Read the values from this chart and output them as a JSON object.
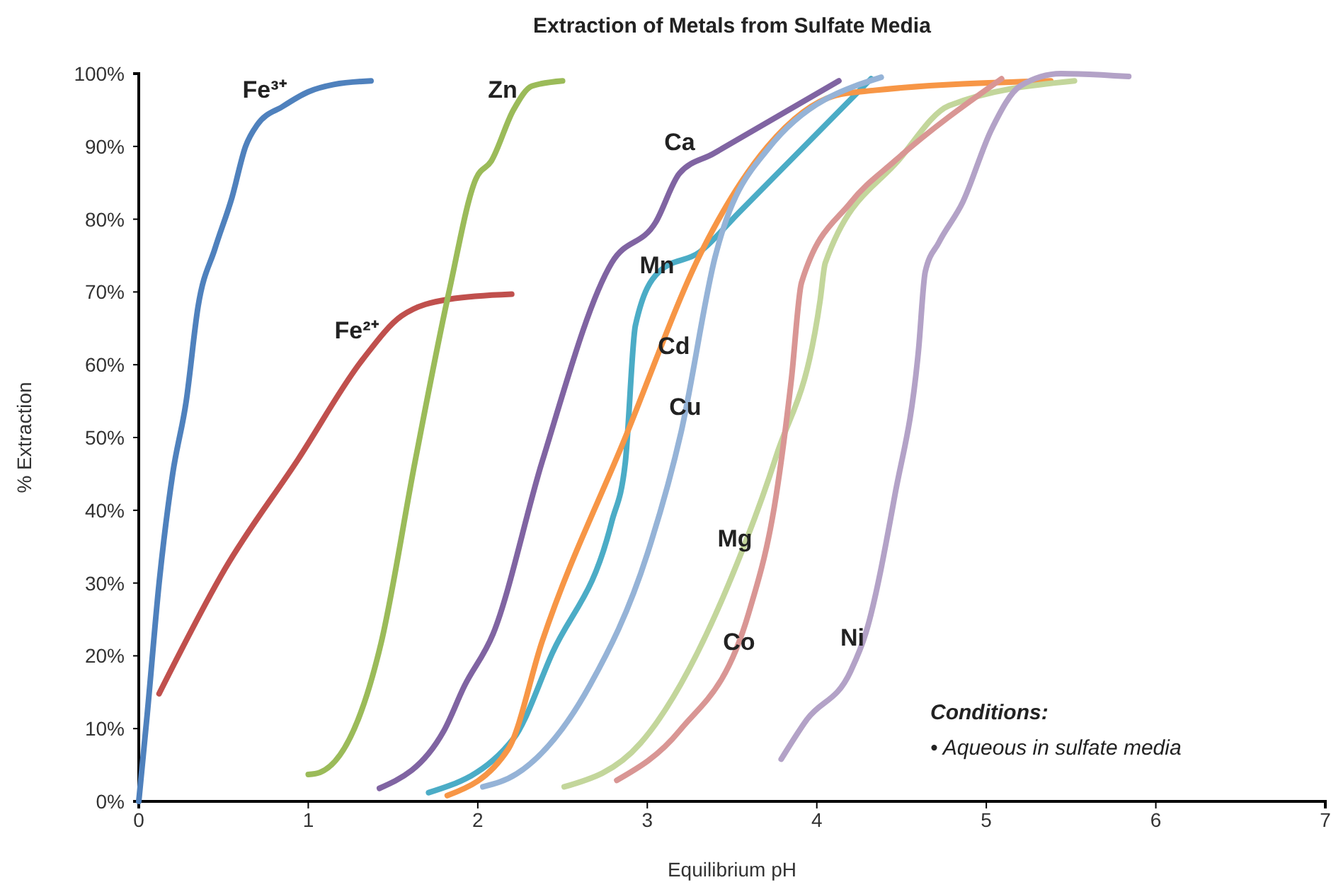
{
  "chart_data": {
    "type": "line",
    "title": "Extraction of Metals from Sulfate Media",
    "xlabel": "Equilibrium pH",
    "ylabel": "% Extraction",
    "xlim": [
      0,
      7
    ],
    "xticks": [
      0,
      1,
      2,
      3,
      4,
      5,
      6,
      7
    ],
    "ylim": [
      0,
      100
    ],
    "yticks": [
      {
        "value": 0,
        "label": "0%"
      },
      {
        "value": 10,
        "label": "10%"
      },
      {
        "value": 20,
        "label": "20%"
      },
      {
        "value": 30,
        "label": "30%"
      },
      {
        "value": 40,
        "label": "40%"
      },
      {
        "value": 50,
        "label": "50%"
      },
      {
        "value": 60,
        "label": "60%"
      },
      {
        "value": 70,
        "label": "70%"
      },
      {
        "value": 80,
        "label": "80%"
      },
      {
        "value": 90,
        "label": "90%"
      },
      {
        "value": 100,
        "label": "100%"
      }
    ],
    "grid": false,
    "marker": "none",
    "line_style": "solid",
    "series": [
      {
        "name": "Fe³⁺",
        "color": "#4f81bd",
        "x": [
          0,
          0.05,
          0.12,
          0.2,
          0.28,
          0.35,
          0.45,
          0.55,
          0.63,
          0.7,
          0.85,
          1.0,
          1.15,
          1.37
        ],
        "values": [
          0,
          12,
          30,
          45,
          55,
          68,
          76,
          83,
          90,
          93,
          95.5,
          97.5,
          98.5,
          99
        ]
      },
      {
        "name": "Fe²⁺",
        "color": "#c0504d",
        "x": [
          0.12,
          0.51,
          0.94,
          1.32,
          1.55,
          1.83,
          2.2
        ],
        "values": [
          14.8,
          32,
          47,
          60.7,
          66.7,
          69,
          69.7
        ]
      },
      {
        "name": "Zn",
        "color": "#9bbb59",
        "x": [
          1.0,
          1.07,
          1.43,
          1.63,
          1.83,
          1.99,
          2.08,
          2.21,
          2.32,
          2.5
        ],
        "values": [
          3.7,
          4,
          21.8,
          46.7,
          70,
          85.6,
          88,
          95,
          98.3,
          99
        ]
      },
      {
        "name": "Ca",
        "color": "#8064a2",
        "x": [
          1.42,
          1.8,
          1.92,
          2.09,
          2.38,
          2.79,
          3.05,
          3.19,
          3.39,
          4.13
        ],
        "values": [
          1.8,
          9.7,
          15.8,
          23,
          46.7,
          74,
          79.6,
          86.3,
          89,
          99
        ]
      },
      {
        "name": "Mn",
        "color": "#4bacc6",
        "x": [
          1.71,
          2.21,
          2.44,
          2.79,
          2.87,
          2.93,
          3.07,
          3.31,
          3.54,
          4.32
        ],
        "values": [
          1.2,
          8.6,
          20.4,
          38.4,
          46.5,
          65.4,
          72.8,
          75.5,
          80.9,
          99.3
        ]
      },
      {
        "name": "Cd",
        "color": "#f79646",
        "x": [
          1.82,
          2.18,
          2.38,
          2.87,
          3.33,
          3.71,
          4.11,
          4.34,
          5.38
        ],
        "values": [
          0.8,
          7.2,
          22,
          50,
          76,
          90,
          97,
          97.7,
          99
        ]
      },
      {
        "name": "Cu",
        "color": "#95b3d7",
        "x": [
          2.03,
          2.23,
          2.66,
          3.0,
          3.2,
          3.4,
          3.71,
          4.38
        ],
        "values": [
          2,
          3.8,
          15.9,
          34,
          50.8,
          74.8,
          89.6,
          99.5
        ]
      },
      {
        "name": "Mg",
        "color": "#c3d69b",
        "x": [
          2.51,
          2.96,
          3.53,
          3.76,
          4.02,
          4.05,
          4.49,
          4.78,
          5.52
        ],
        "values": [
          2,
          8,
          32.7,
          47.4,
          68.9,
          74,
          88.3,
          95.6,
          99
        ]
      },
      {
        "name": "Co",
        "color": "#d99694",
        "x": [
          2.82,
          3.19,
          3.6,
          3.76,
          3.85,
          3.91,
          4.2,
          4.46,
          5.09
        ],
        "values": [
          2.9,
          9.7,
          26,
          42,
          58,
          71.3,
          82.3,
          88,
          99.3
        ]
      },
      {
        "name": "Ni",
        "color": "#b3a2c7",
        "x": [
          3.79,
          3.94,
          4.2,
          4.29,
          4.46,
          4.6,
          4.64,
          4.72,
          4.86,
          5.03,
          5.2,
          5.44,
          5.84
        ],
        "values": [
          5.8,
          11.2,
          17.9,
          23.2,
          42,
          62,
          72.8,
          76.8,
          82.3,
          92.3,
          98.3,
          100,
          99.6
        ]
      }
    ],
    "annotations": [
      "Conditions:",
      "• Aqueous in sulfate media"
    ]
  }
}
